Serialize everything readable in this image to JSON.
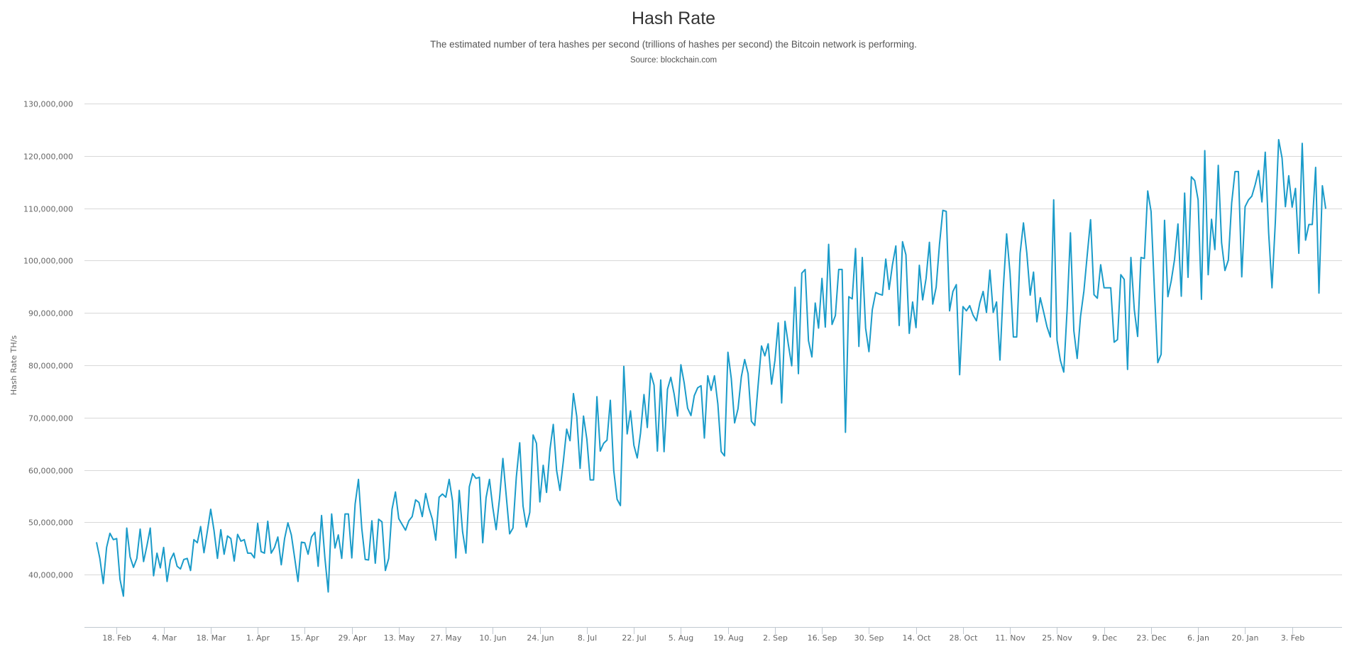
{
  "header": {
    "title": "Hash Rate",
    "subtitle": "The estimated number of tera hashes per second (trillions of hashes per second) the Bitcoin network is performing.",
    "source": "Source: blockchain.com"
  },
  "colors": {
    "line": "#1a9bc9",
    "grid": "#d8d8d8",
    "axis": "#c0c8d0",
    "text": "#666666"
  },
  "chart_data": {
    "type": "line",
    "title": "Hash Rate",
    "subtitle": "The estimated number of tera hashes per second (trillions of hashes per second) the Bitcoin network is performing.",
    "source": "Source: blockchain.com",
    "xlabel": "",
    "ylabel": "Hash Rate TH/s",
    "ylim": [
      30000000,
      130000000
    ],
    "yticks": [
      40000000,
      50000000,
      60000000,
      70000000,
      80000000,
      90000000,
      100000000,
      110000000,
      120000000,
      130000000
    ],
    "ytick_labels": [
      "40,000,000",
      "50,000,000",
      "60,000,000",
      "70,000,000",
      "80,000,000",
      "90,000,000",
      "100,000,000",
      "110,000,000",
      "120,000,000",
      "130,000,000"
    ],
    "xtick_labels": [
      "18. Feb",
      "4. Mar",
      "18. Mar",
      "1. Apr",
      "15. Apr",
      "29. Apr",
      "13. May",
      "27. May",
      "10. Jun",
      "24. Jun",
      "8. Jul",
      "22. Jul",
      "5. Aug",
      "19. Aug",
      "2. Sep",
      "16. Sep",
      "30. Sep",
      "14. Oct",
      "28. Oct",
      "11. Nov",
      "25. Nov",
      "9. Dec",
      "23. Dec",
      "6. Jan",
      "20. Jan",
      "3. Feb"
    ],
    "grid": true,
    "legend": "none",
    "x_start_label": "12. Feb",
    "x_step_days": 1,
    "series": [
      {
        "name": "Hash Rate",
        "unit": "TH/s",
        "values": [
          46.2,
          43.1,
          38.3,
          45.2,
          47.9,
          46.7,
          46.9,
          39.1,
          35.9,
          48.9,
          43.4,
          41.4,
          43.1,
          48.7,
          42.5,
          45.5,
          48.9,
          39.8,
          44.1,
          41.3,
          45.2,
          38.7,
          42.8,
          44.1,
          41.6,
          41.1,
          42.9,
          43.1,
          40.8,
          46.7,
          46.1,
          49.2,
          44.2,
          48.3,
          52.5,
          48.4,
          43.1,
          48.6,
          43.9,
          47.4,
          46.9,
          42.6,
          47.7,
          46.4,
          46.7,
          44.1,
          44.1,
          43.2,
          49.8,
          44.4,
          44.1,
          50.2,
          44.1,
          45.2,
          47.2,
          41.9,
          46.9,
          49.9,
          47.6,
          43.2,
          38.7,
          46.2,
          46.1,
          43.9,
          47.2,
          48.1,
          41.6,
          51.3,
          43.2,
          36.7,
          51.6,
          45.1,
          47.6,
          43.1,
          51.6,
          51.6,
          43.2,
          53.5,
          58.2,
          48.8,
          42.9,
          42.8,
          50.3,
          42.2,
          50.6,
          50.1,
          40.8,
          43.1,
          52.5,
          55.8,
          50.7,
          49.6,
          48.5,
          50.3,
          51.1,
          54.3,
          53.8,
          51.1,
          55.5,
          52.7,
          50.6,
          46.6,
          54.8,
          55.4,
          54.8,
          58.2,
          54.1,
          43.2,
          56.1,
          48.2,
          44.1,
          56.8,
          59.3,
          58.4,
          58.6,
          46.1,
          54.7,
          58.2,
          52.8,
          48.6,
          54.6,
          62.2,
          55.1,
          47.8,
          48.9,
          58.6,
          65.2,
          53.1,
          49.1,
          51.9,
          66.7,
          65.1,
          53.9,
          60.9,
          55.7,
          63.9,
          68.7,
          59.9,
          56.1,
          61.7,
          67.8,
          65.6,
          74.6,
          70.2,
          60.3,
          70.3,
          65.9,
          58.1,
          58.1,
          74.0,
          63.6,
          65.1,
          65.7,
          73.3,
          59.9,
          54.4,
          53.2,
          79.8,
          66.9,
          71.3,
          64.7,
          62.3,
          67.1,
          74.4,
          68.1,
          78.5,
          76.2,
          63.6,
          77.2,
          63.5,
          75.4,
          77.7,
          74.5,
          70.3,
          80.1,
          76.6,
          71.8,
          70.4,
          74.2,
          75.7,
          76.1,
          66.1,
          78.0,
          75.2,
          78.0,
          72.6,
          63.5,
          62.7,
          82.5,
          77.5,
          69.0,
          71.7,
          77.8,
          81.1,
          78.4,
          69.3,
          68.5,
          76.3,
          83.7,
          81.8,
          84.1,
          76.4,
          80.9,
          88.1,
          72.8,
          88.4,
          84.0,
          79.9,
          94.9,
          78.4,
          97.6,
          98.3,
          84.7,
          81.6,
          91.9,
          87.1,
          96.6,
          87.3,
          103.1,
          87.8,
          89.5,
          98.3,
          98.3,
          67.2,
          93.1,
          92.7,
          102.3,
          83.6,
          100.6,
          87.1,
          82.6,
          90.6,
          93.9,
          93.6,
          93.4,
          100.3,
          94.5,
          99.2,
          102.8,
          87.6,
          103.6,
          101.1,
          86.1,
          92.1,
          87.2,
          99.1,
          92.5,
          96.6,
          103.5,
          91.7,
          94.9,
          103.1,
          109.6,
          109.4,
          90.4,
          94.1,
          95.4,
          78.2,
          91.2,
          90.4,
          91.4,
          89.6,
          88.5,
          91.9,
          94.1,
          90.1,
          98.2,
          90.1,
          92.1,
          81.0,
          94.7,
          105.1,
          97.6,
          85.4,
          85.4,
          101.4,
          107.2,
          101.5,
          93.4,
          97.8,
          88.3,
          92.9,
          90.2,
          87.4,
          85.4,
          111.6,
          84.8,
          80.9,
          78.7,
          90.6,
          105.3,
          86.6,
          81.3,
          89.3,
          94.2,
          101.1,
          107.8,
          93.5,
          92.8,
          99.2,
          94.8,
          94.8,
          94.8,
          84.4,
          84.9,
          97.3,
          96.4,
          79.2,
          100.6,
          90.6,
          85.5,
          100.6,
          100.4,
          113.3,
          109.4,
          94.1,
          80.5,
          82.1,
          107.7,
          93.1,
          96.1,
          100.2,
          107.0,
          93.2,
          112.9,
          96.8,
          116.0,
          115.3,
          111.6,
          92.6,
          121.0,
          97.3,
          107.9,
          102.1,
          118.2,
          103.4,
          98.1,
          100.1,
          111.0,
          117.0,
          117.0,
          96.9,
          110.3,
          111.6,
          112.3,
          114.5,
          117.2,
          111.2,
          120.7,
          105.3,
          94.8,
          107.3,
          123.1,
          119.6,
          110.3,
          116.2,
          110.2,
          113.8,
          101.4,
          122.4,
          103.9,
          106.9,
          106.9,
          117.8,
          93.8,
          114.3,
          109.9
        ]
      }
    ]
  }
}
